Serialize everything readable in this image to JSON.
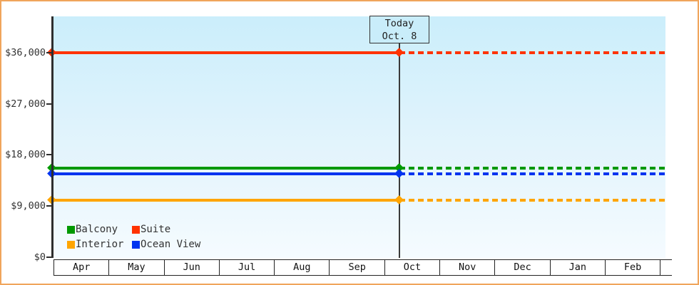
{
  "window": {
    "frame_border_color": "#F0A55C",
    "background": "#FFFFFF"
  },
  "chart_data": {
    "type": "line",
    "title": "",
    "x": {
      "categories": [
        "Apr",
        "May",
        "Jun",
        "Jul",
        "Aug",
        "Sep",
        "Oct",
        "Nov",
        "Dec",
        "Jan",
        "Feb",
        ""
      ],
      "note_last_cell_clipped": true
    },
    "y": {
      "ticks": [
        {
          "label": "$0",
          "value": 0
        },
        {
          "label": "$9,000",
          "value": 9000
        },
        {
          "label": "$18,000",
          "value": 18000
        },
        {
          "label": "$27,000",
          "value": 27000
        },
        {
          "label": "$36,000",
          "value": 36000
        }
      ],
      "ylim": [
        0,
        42400
      ],
      "grid": false
    },
    "series": [
      {
        "name": "Suite",
        "color": "#FF3300",
        "value": 36000,
        "style": "solid-then-dotted"
      },
      {
        "name": "Balcony",
        "color": "#009900",
        "value": 15600,
        "style": "solid-then-dotted"
      },
      {
        "name": "Ocean View",
        "color": "#0033F0",
        "value": 14600,
        "style": "solid-then-dotted"
      },
      {
        "name": "Interior",
        "color": "#FFA500",
        "value": 10000,
        "style": "solid-then-dotted"
      }
    ],
    "today": {
      "line1": "Today",
      "line2": "Oct. 8",
      "month": "Oct",
      "day": 8
    },
    "legend": {
      "position": "bottom-left",
      "rows": [
        [
          {
            "name": "Balcony",
            "color": "#009900"
          },
          {
            "name": "Suite",
            "color": "#FF3300"
          }
        ],
        [
          {
            "name": "Interior",
            "color": "#FFA500"
          },
          {
            "name": "Ocean View",
            "color": "#0033F0"
          }
        ]
      ]
    },
    "plot_background": {
      "top": "#CBEEFB",
      "bottom": "#F5FBFF"
    },
    "axis_color": "#2E2E2E"
  }
}
